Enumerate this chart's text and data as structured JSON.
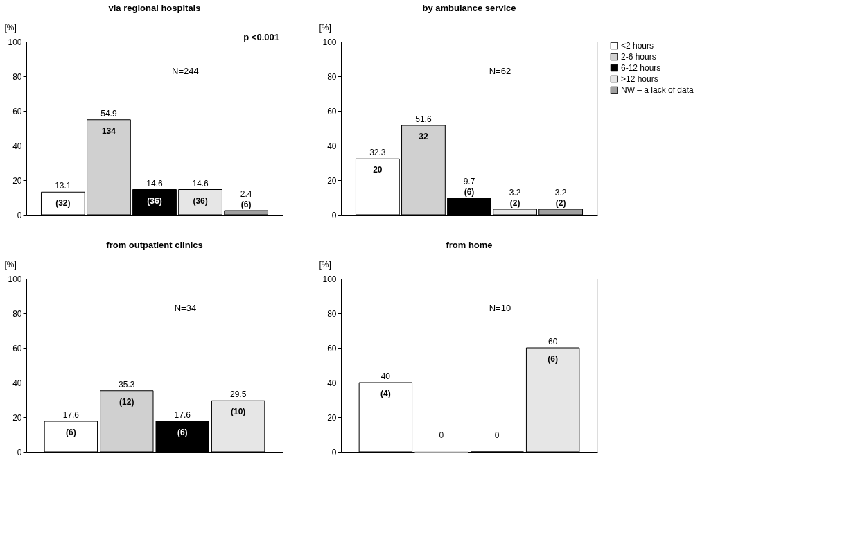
{
  "chart_data": [
    {
      "type": "bar",
      "title": "via regional hospitals",
      "ylabel": "[%]",
      "categories": [
        null,
        null,
        null,
        null,
        null
      ],
      "ylim": [
        0,
        100
      ],
      "yticks": [
        0,
        20,
        40,
        60,
        80,
        100
      ],
      "grid": false,
      "tick_labels": "y",
      "data_labels": true,
      "legend": false,
      "series": [
        {
          "color": "#ffffff",
          "values": [
            13.1,
            null,
            null,
            null,
            null
          ]
        },
        {
          "color": "#d0d0d0",
          "values": [
            null,
            54.9,
            null,
            null,
            null
          ]
        },
        {
          "color": "#000000",
          "values": [
            null,
            null,
            14.6,
            null,
            null
          ]
        },
        {
          "color": "#e6e6e6",
          "values": [
            null,
            null,
            null,
            14.6,
            null
          ]
        },
        {
          "color": "#a0a0a0",
          "values": [
            null,
            null,
            null,
            null,
            2.4
          ]
        }
      ],
      "annotations": [
        "N=244",
        "(32)",
        "134",
        "(36)",
        "(36)",
        "(6)",
        "p <0.001"
      ]
    },
    {
      "type": "bar",
      "title": "by ambulance service",
      "ylabel": "[%]",
      "categories": [
        null,
        null,
        null,
        null,
        null
      ],
      "ylim": [
        0,
        100
      ],
      "yticks": [
        0,
        20,
        40,
        60,
        80,
        100
      ],
      "grid": false,
      "tick_labels": "y",
      "data_labels": true,
      "legend": "right",
      "series": [
        {
          "name": "<2 hours",
          "color": "#ffffff",
          "values": [
            32.3,
            null,
            null,
            null,
            null
          ]
        },
        {
          "name": "2-6 hours",
          "color": "#d0d0d0",
          "values": [
            null,
            51.6,
            null,
            null,
            null
          ]
        },
        {
          "name": "6-12 hours",
          "color": "#000000",
          "values": [
            null,
            null,
            9.7,
            null,
            null
          ]
        },
        {
          "name": ">12 hours",
          "color": "#e6e6e6",
          "values": [
            null,
            null,
            null,
            3.2,
            null
          ]
        },
        {
          "name": "NW – a lack of data",
          "color": "#a0a0a0",
          "values": [
            null,
            null,
            null,
            null,
            3.2
          ]
        }
      ],
      "annotations": [
        "N=62",
        "20",
        "32",
        "(6)",
        "(2)",
        "(2)"
      ]
    },
    {
      "type": "bar",
      "title": "from outpatient clinics",
      "ylabel": "[%]",
      "categories": [
        null,
        null,
        null,
        null
      ],
      "ylim": [
        0,
        100
      ],
      "yticks": [
        0,
        20,
        40,
        60,
        80,
        100
      ],
      "grid": false,
      "tick_labels": "y",
      "data_labels": true,
      "legend": false,
      "series": [
        {
          "color": "#ffffff",
          "values": [
            17.6,
            null,
            null,
            null
          ]
        },
        {
          "color": "#d0d0d0",
          "values": [
            null,
            35.3,
            null,
            null
          ]
        },
        {
          "color": "#000000",
          "values": [
            null,
            null,
            17.6,
            null
          ]
        },
        {
          "color": "#e6e6e6",
          "values": [
            null,
            null,
            null,
            29.5
          ]
        }
      ],
      "annotations": [
        "N=34",
        "(6)",
        "(12)",
        "(6)",
        "(10)"
      ]
    },
    {
      "type": "bar",
      "title": "from home",
      "ylabel": "[%]",
      "categories": [
        null,
        null,
        null,
        null
      ],
      "ylim": [
        0,
        100
      ],
      "yticks": [
        0,
        20,
        40,
        60,
        80,
        100
      ],
      "grid": false,
      "tick_labels": "y",
      "data_labels": true,
      "legend": false,
      "series": [
        {
          "color": "#ffffff",
          "values": [
            40,
            null,
            null,
            null
          ]
        },
        {
          "color": "#d0d0d0",
          "values": [
            null,
            0,
            null,
            null
          ]
        },
        {
          "color": "#000000",
          "values": [
            null,
            null,
            0,
            null
          ]
        },
        {
          "color": "#e6e6e6",
          "values": [
            null,
            null,
            null,
            60
          ]
        }
      ],
      "annotations": [
        "N=10",
        "(4)",
        "(6)"
      ]
    }
  ]
}
